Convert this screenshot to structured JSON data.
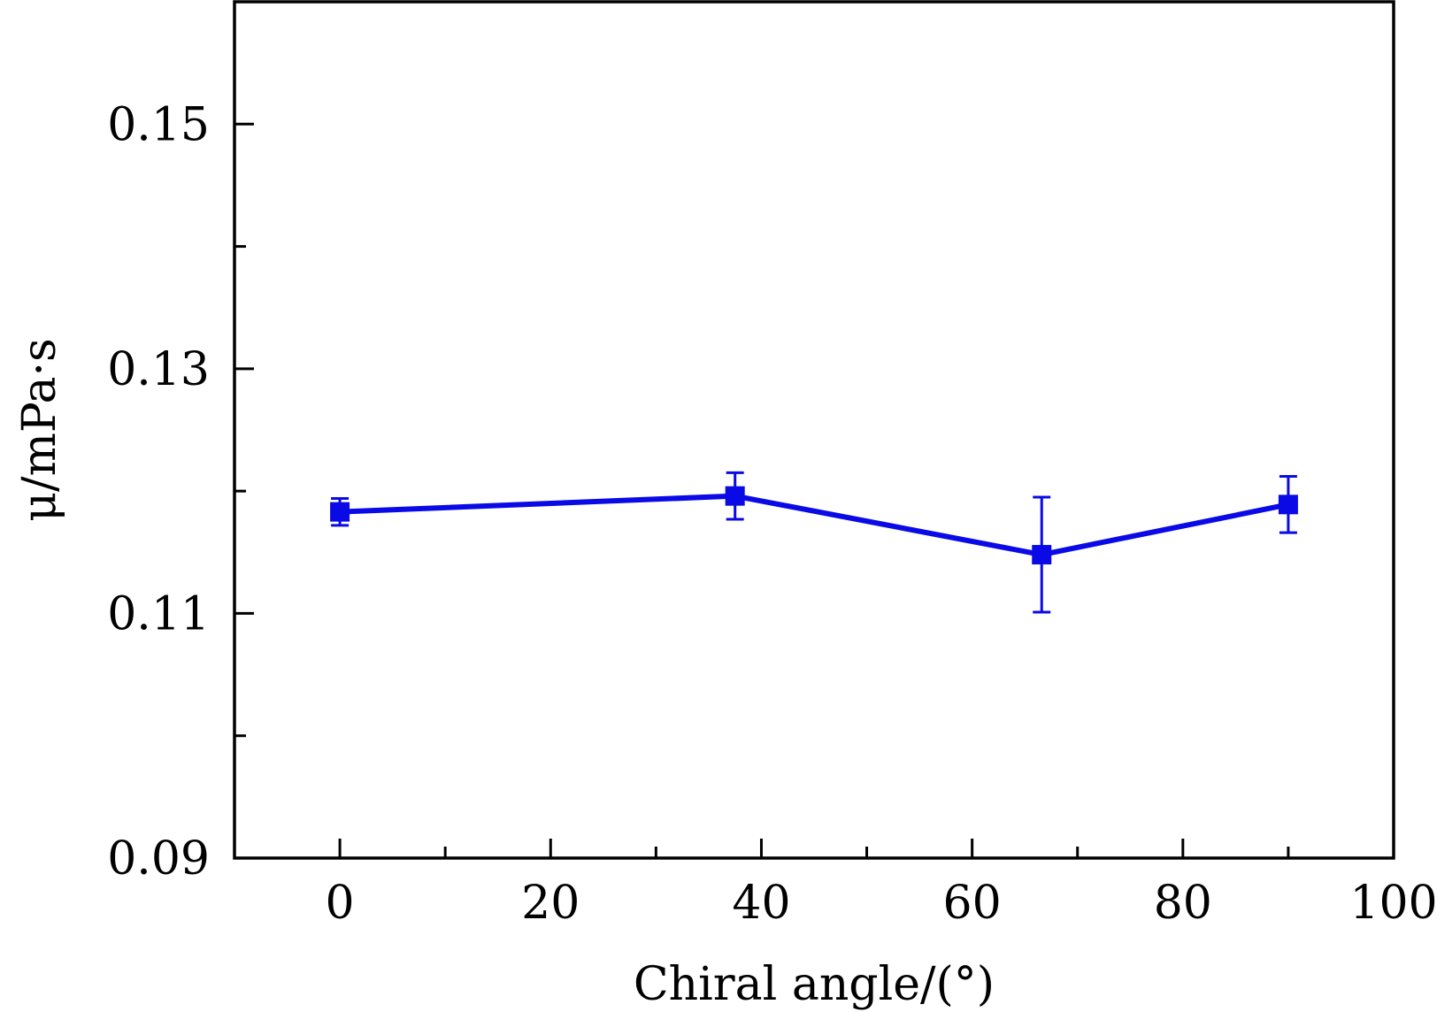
{
  "chart_data": {
    "type": "line",
    "xlabel": "Chiral angle/(°)",
    "ylabel": "μ/mPa·s",
    "xlim": [
      -10,
      100
    ],
    "ylim": [
      0.09,
      0.16
    ],
    "x_ticks": [
      0,
      20,
      40,
      60,
      80,
      100
    ],
    "x_tick_labels": [
      "0",
      "20",
      "40",
      "60",
      "80",
      "100"
    ],
    "x_minor_ticks": [
      10,
      30,
      50,
      70,
      90
    ],
    "y_ticks": [
      0.09,
      0.11,
      0.13,
      0.15
    ],
    "y_tick_labels": [
      "0.09",
      "0.11",
      "0.13",
      "0.15"
    ],
    "y_minor_ticks": [
      0.1,
      0.12,
      0.14,
      0.16
    ],
    "grid": false,
    "series": [
      {
        "color": "#0a0ae6",
        "marker": "square",
        "x": [
          0,
          37.5,
          66.6,
          90
        ],
        "y": [
          0.1183,
          0.1196,
          0.1148,
          0.1189
        ],
        "error": [
          0.0011,
          0.0019,
          0.0047,
          0.0023
        ]
      }
    ]
  }
}
